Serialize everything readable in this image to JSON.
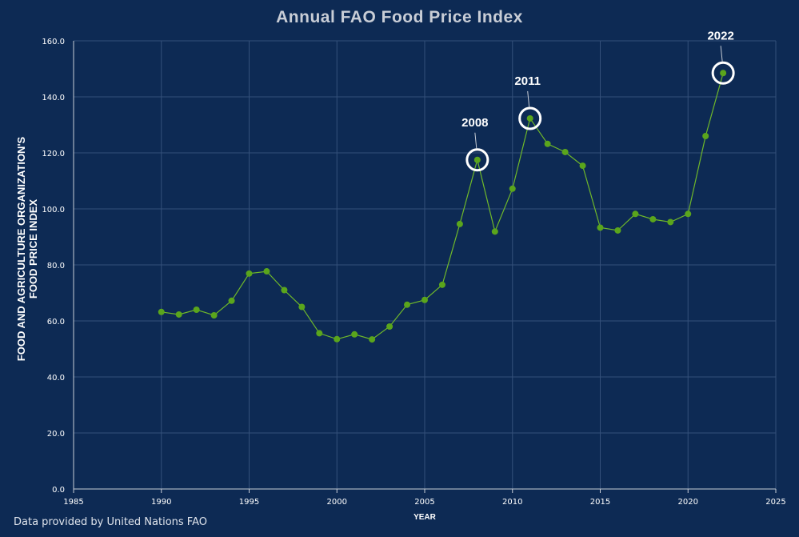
{
  "page": {
    "source_note": "Data provided by United Nations FAO"
  },
  "colors": {
    "background": "#0d2a54",
    "line": "#6fb82a",
    "marker": "#5aa51c",
    "callout_ring": "#ffffff",
    "grid": "#34507a",
    "text": "#ffffff"
  },
  "chart_data": {
    "type": "line",
    "title": "Annual FAO Food Price Index",
    "xlabel": "YEAR",
    "ylabel": [
      "FOOD AND AGRICULTURE ORGANIZATION'S",
      "FOOD PRICE INDEX"
    ],
    "xlim": [
      1985,
      2025
    ],
    "ylim": [
      0,
      160
    ],
    "x_ticks": [
      1985,
      1990,
      1995,
      2000,
      2005,
      2010,
      2015,
      2020,
      2025
    ],
    "y_ticks": [
      "0.0",
      "20.0",
      "40.0",
      "60.0",
      "80.0",
      "100.0",
      "120.0",
      "140.0",
      "160.0"
    ],
    "grid": true,
    "legend": "none",
    "series": [
      {
        "x": [
          1990,
          1991,
          1992,
          1993,
          1994,
          1995,
          1996,
          1997,
          1998,
          1999,
          2000,
          2001,
          2002,
          2003,
          2004,
          2005,
          2006,
          2007,
          2008,
          2009,
          2010,
          2011,
          2012,
          2013,
          2014,
          2015,
          2016,
          2017,
          2018,
          2019,
          2020,
          2021,
          2022
        ],
        "y": [
          63.2,
          62.3,
          64.0,
          62.0,
          67.2,
          76.9,
          77.7,
          71.0,
          65.0,
          55.6,
          53.5,
          55.2,
          53.4,
          58.0,
          65.8,
          67.5,
          72.9,
          94.6,
          117.5,
          91.9,
          107.2,
          132.3,
          123.2,
          120.3,
          115.4,
          93.3,
          92.3,
          98.2,
          96.3,
          95.3,
          98.2,
          126.0,
          148.5
        ]
      }
    ],
    "annotations": [
      {
        "x": 2008,
        "y": 117.5,
        "text": "2008"
      },
      {
        "x": 2011,
        "y": 132.3,
        "text": "2011"
      },
      {
        "x": 2022,
        "y": 148.5,
        "text": "2022"
      }
    ]
  }
}
